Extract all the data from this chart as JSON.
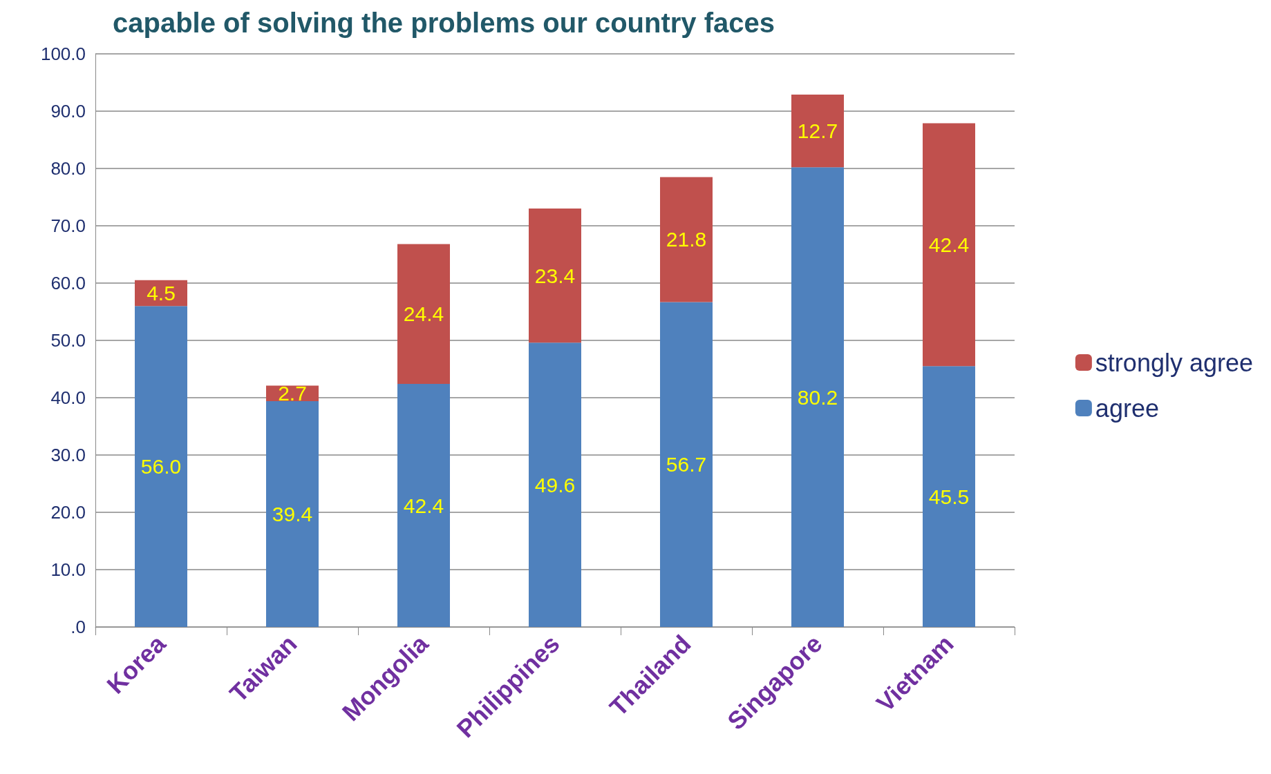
{
  "chart_data": {
    "type": "bar",
    "stacked": true,
    "title": "capable of solving the problems our country faces",
    "categories": [
      "Korea",
      "Taiwan",
      "Mongolia",
      "Philippines",
      "Thailand",
      "Singapore",
      "Vietnam"
    ],
    "series": [
      {
        "name": "agree",
        "color": "#4f81bd",
        "values": [
          56.0,
          39.4,
          42.4,
          49.6,
          56.7,
          80.2,
          45.5
        ],
        "value_labels": [
          "56.0",
          "39.4",
          "42.4",
          "49.6",
          "56.7",
          "80.2",
          "45.5"
        ]
      },
      {
        "name": "strongly agree",
        "color": "#c0504d",
        "values": [
          4.5,
          2.7,
          24.4,
          23.4,
          21.8,
          12.7,
          42.4
        ],
        "value_labels": [
          "4.5",
          "2.7",
          "24.4",
          "23.4",
          "21.8",
          "12.7",
          "42.4"
        ]
      }
    ],
    "ylim": [
      0,
      100
    ],
    "yticks": [
      {
        "value": 0,
        "label": ".0"
      },
      {
        "value": 10,
        "label": "10.0"
      },
      {
        "value": 20,
        "label": "20.0"
      },
      {
        "value": 30,
        "label": "30.0"
      },
      {
        "value": 40,
        "label": "40.0"
      },
      {
        "value": 50,
        "label": "50.0"
      },
      {
        "value": 60,
        "label": "60.0"
      },
      {
        "value": 70,
        "label": "70.0"
      },
      {
        "value": 80,
        "label": "80.0"
      },
      {
        "value": 90,
        "label": "90.0"
      },
      {
        "value": 100,
        "label": "100.0"
      }
    ],
    "grid": "y",
    "legend": "right"
  }
}
